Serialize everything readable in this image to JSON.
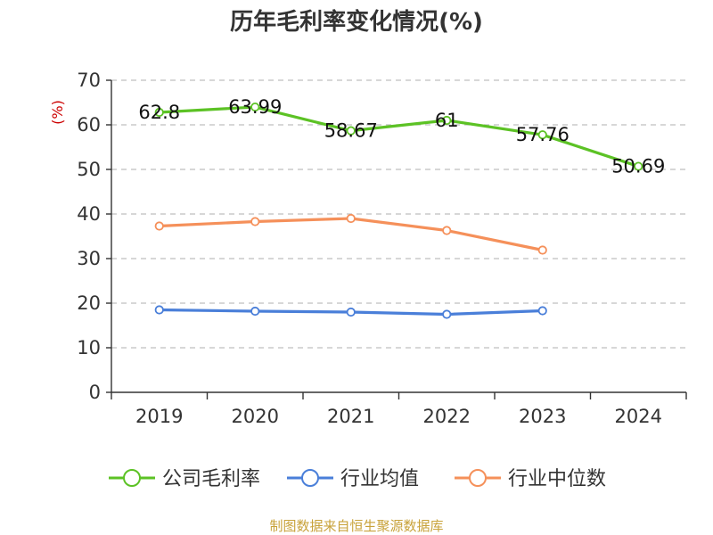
{
  "chart_data": {
    "type": "line",
    "title": "历年毛利率变化情况(%)",
    "ylabel": "(%)",
    "categories": [
      "2019",
      "2020",
      "2021",
      "2022",
      "2023",
      "2024"
    ],
    "ylim": [
      0,
      70
    ],
    "yticks": [
      "0",
      "10",
      "20",
      "30",
      "40",
      "50",
      "60",
      "70"
    ],
    "grid": true,
    "legend_position": "bottom",
    "series": [
      {
        "name": "公司毛利率",
        "color": "#5cc225",
        "values": [
          62.8,
          63.99,
          58.67,
          61,
          57.76,
          50.69
        ],
        "labels": [
          "62.8",
          "63.99",
          "58.67",
          "61",
          "57.76",
          "50.69"
        ]
      },
      {
        "name": "行业均值",
        "color": "#4a7fd9",
        "values": [
          18.5,
          18.2,
          18.0,
          17.5,
          18.3,
          null
        ]
      },
      {
        "name": "行业中位数",
        "color": "#f5905a",
        "values": [
          37.3,
          38.3,
          39.0,
          36.3,
          31.9,
          null
        ]
      }
    ]
  },
  "footer": {
    "source": "制图数据来自恒生聚源数据库"
  }
}
